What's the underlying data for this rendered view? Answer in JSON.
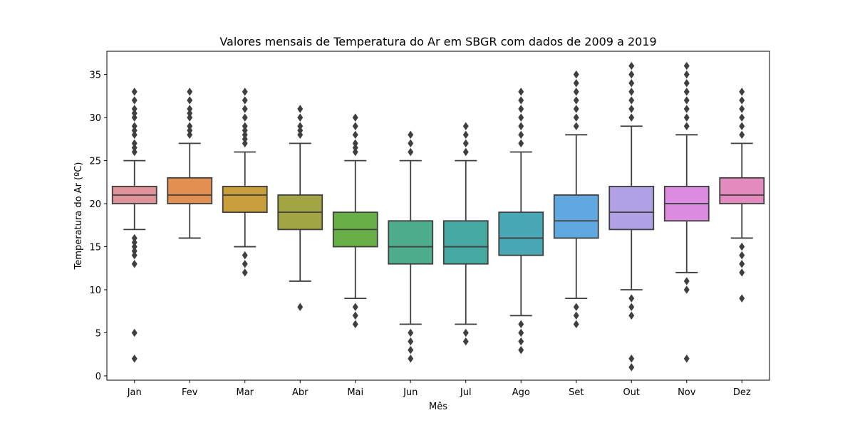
{
  "chart_data": {
    "type": "box",
    "title": "Valores mensais de Temperatura do Ar em SBGR com dados de 2009 a 2019",
    "xlabel": "Mês",
    "ylabel": "Temperatura do Ar (ºC)",
    "ylim": [
      -0.5,
      37.7
    ],
    "yticks": [
      0,
      5,
      10,
      15,
      20,
      25,
      30,
      35
    ],
    "grid": false,
    "categories": [
      "Jan",
      "Fev",
      "Mar",
      "Abr",
      "Mai",
      "Jun",
      "Jul",
      "Ago",
      "Set",
      "Out",
      "Nov",
      "Dez"
    ],
    "boxes": [
      {
        "label": "Jan",
        "whisker_low": 17,
        "q1": 20,
        "median": 21,
        "q3": 22,
        "whisker_high": 25,
        "outliers": [
          2,
          5,
          13,
          14,
          14.5,
          15,
          15.5,
          16,
          26,
          26.5,
          27,
          28,
          28.5,
          29,
          30,
          30.5,
          31,
          32,
          33
        ],
        "color": "#e1939b"
      },
      {
        "label": "Fev",
        "whisker_low": 16,
        "q1": 20,
        "median": 21,
        "q3": 23,
        "whisker_high": 27,
        "outliers": [
          28,
          28.5,
          29,
          30,
          30.5,
          31,
          32,
          33
        ],
        "color": "#e19051"
      },
      {
        "label": "Mar",
        "whisker_low": 15,
        "q1": 19,
        "median": 21,
        "q3": 22,
        "whisker_high": 26,
        "outliers": [
          12,
          13,
          14,
          27,
          27.5,
          28,
          28.5,
          29,
          30,
          31,
          32,
          33
        ],
        "color": "#c89d3b"
      },
      {
        "label": "Abr",
        "whisker_low": 11,
        "q1": 17,
        "median": 19,
        "q3": 21,
        "whisker_high": 27,
        "outliers": [
          8,
          28,
          28.5,
          29,
          30,
          31
        ],
        "color": "#a1a543"
      },
      {
        "label": "Mai",
        "whisker_low": 9,
        "q1": 15,
        "median": 17,
        "q3": 19,
        "whisker_high": 25,
        "outliers": [
          6,
          7,
          8,
          26,
          26.5,
          27,
          28,
          29,
          30
        ],
        "color": "#69af47"
      },
      {
        "label": "Jun",
        "whisker_low": 6,
        "q1": 13,
        "median": 15,
        "q3": 18,
        "whisker_high": 25,
        "outliers": [
          2,
          3,
          4,
          5,
          26,
          27,
          28
        ],
        "color": "#4dad8d"
      },
      {
        "label": "Jul",
        "whisker_low": 6,
        "q1": 13,
        "median": 15,
        "q3": 18,
        "whisker_high": 25,
        "outliers": [
          4,
          5,
          26,
          27,
          28,
          29
        ],
        "color": "#47aaa2"
      },
      {
        "label": "Ago",
        "whisker_low": 7,
        "q1": 14,
        "median": 16,
        "q3": 19,
        "whisker_high": 26,
        "outliers": [
          3,
          4,
          5,
          6,
          27,
          28,
          29,
          30,
          31,
          32,
          33
        ],
        "color": "#49a8b6"
      },
      {
        "label": "Set",
        "whisker_low": 9,
        "q1": 16,
        "median": 18,
        "q3": 21,
        "whisker_high": 28,
        "outliers": [
          6,
          7,
          8,
          29,
          30,
          31,
          32,
          33,
          34,
          35
        ],
        "color": "#60a8e0"
      },
      {
        "label": "Out",
        "whisker_low": 10,
        "q1": 17,
        "median": 19,
        "q3": 22,
        "whisker_high": 29,
        "outliers": [
          1,
          2,
          7,
          8,
          9,
          30,
          31,
          32,
          33,
          34,
          35,
          36
        ],
        "color": "#b1a1e5"
      },
      {
        "label": "Nov",
        "whisker_low": 12,
        "q1": 18,
        "median": 20,
        "q3": 22,
        "whisker_high": 28,
        "outliers": [
          2,
          10,
          11,
          29,
          30,
          31,
          32,
          33,
          34,
          35,
          36
        ],
        "color": "#dd8de1"
      },
      {
        "label": "Dez",
        "whisker_low": 16,
        "q1": 20,
        "median": 21,
        "q3": 23,
        "whisker_high": 27,
        "outliers": [
          9,
          12,
          13,
          14,
          15,
          28,
          29,
          30,
          31,
          32,
          33
        ],
        "color": "#e38bbf"
      }
    ]
  }
}
